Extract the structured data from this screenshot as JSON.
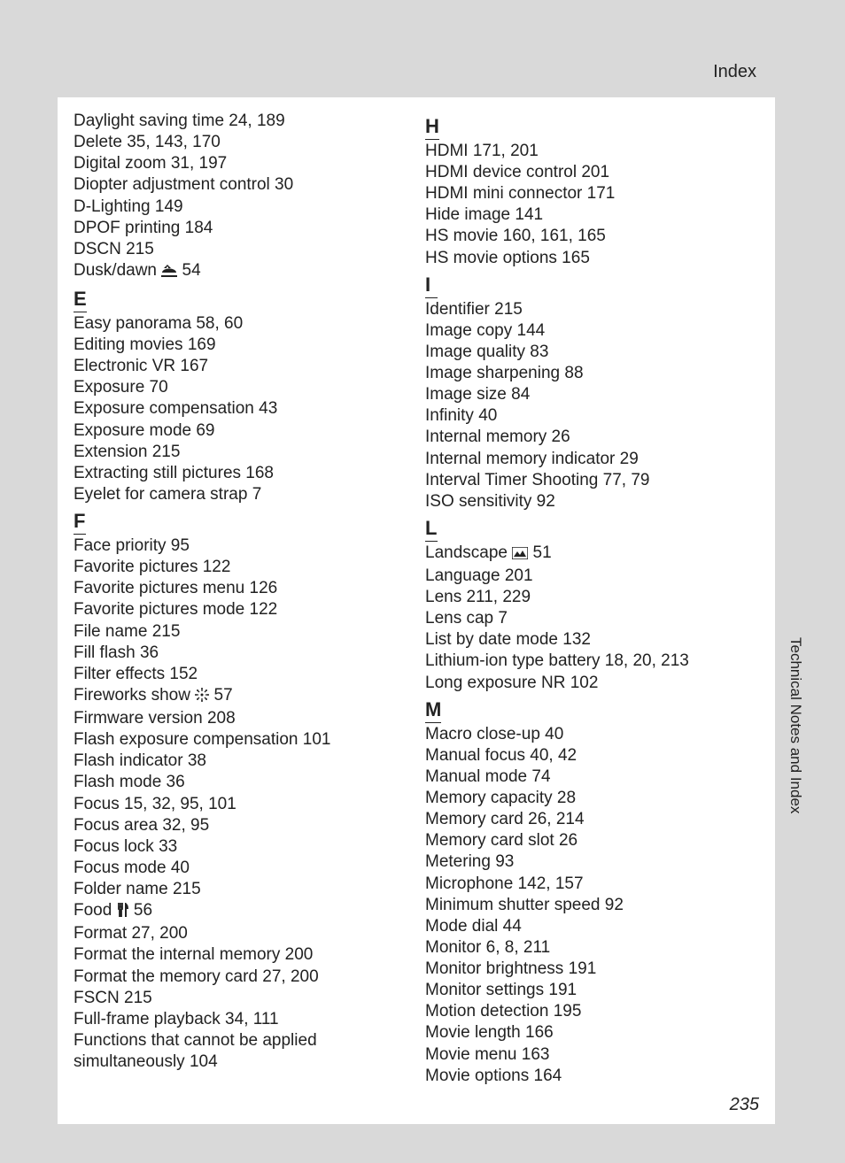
{
  "header": "Index",
  "side_label": "Technical Notes and Index",
  "page_number": "235",
  "col1": {
    "pre": [
      "Daylight saving time 24, 189",
      "Delete 35, 143, 170",
      "Digital zoom 31, 197",
      "Diopter adjustment control 30",
      "D-Lighting 149",
      "DPOF printing 184",
      "DSCN 215"
    ],
    "dusk_label": "Dusk/dawn",
    "dusk_page": " 54",
    "letter_e": "E",
    "e": [
      "Easy panorama 58, 60",
      "Editing movies 169",
      "Electronic VR 167",
      "Exposure 70",
      "Exposure compensation 43",
      "Exposure mode 69",
      "Extension 215",
      "Extracting still pictures 168",
      "Eyelet for camera strap 7"
    ],
    "letter_f": "F",
    "f1": [
      "Face priority 95",
      "Favorite pictures 122",
      "Favorite pictures menu 126",
      "Favorite pictures mode 122",
      "File name 215",
      "Fill flash 36",
      "Filter effects 152"
    ],
    "fireworks_label": "Fireworks show",
    "fireworks_page": " 57",
    "f2": [
      "Firmware version 208",
      "Flash exposure compensation 101",
      "Flash indicator 38",
      "Flash mode 36",
      "Focus 15, 32, 95, 101",
      "Focus area 32, 95",
      "Focus lock 33",
      "Focus mode 40",
      "Folder name 215"
    ],
    "food_label": "Food",
    "food_page": " 56",
    "f3": [
      "Format 27, 200",
      "Format the internal memory 200",
      "Format the memory card 27, 200",
      "FSCN 215",
      "Full-frame playback 34, 111",
      "Functions that cannot be applied simultaneously 104"
    ]
  },
  "col2": {
    "letter_h": "H",
    "h": [
      "HDMI 171, 201",
      "HDMI device control 201",
      "HDMI mini connector 171",
      "Hide image 141",
      "HS movie 160, 161, 165",
      "HS movie options 165"
    ],
    "letter_i": "I",
    "i": [
      "Identifier 215",
      "Image copy 144",
      "Image quality 83",
      "Image sharpening 88",
      "Image size 84",
      "Infinity 40",
      "Internal memory 26",
      "Internal memory indicator 29",
      "Interval Timer Shooting 77, 79",
      "ISO sensitivity 92"
    ],
    "letter_l": "L",
    "landscape_label": "Landscape",
    "landscape_page": " 51",
    "l": [
      "Language 201",
      "Lens 211, 229",
      "Lens cap 7",
      "List by date mode 132",
      "Lithium-ion type battery 18, 20, 213",
      "Long exposure NR 102"
    ],
    "letter_m": "M",
    "m": [
      "Macro close-up 40",
      "Manual focus 40, 42",
      "Manual mode 74",
      "Memory capacity 28",
      "Memory card 26, 214",
      "Memory card slot 26",
      "Metering 93",
      "Microphone 142, 157",
      "Minimum shutter speed 92",
      "Mode dial 44",
      "Monitor 6, 8, 211",
      "Monitor brightness 191",
      "Monitor settings 191",
      "Motion detection 195",
      "Movie length 166",
      "Movie menu 163",
      "Movie options 164"
    ]
  }
}
